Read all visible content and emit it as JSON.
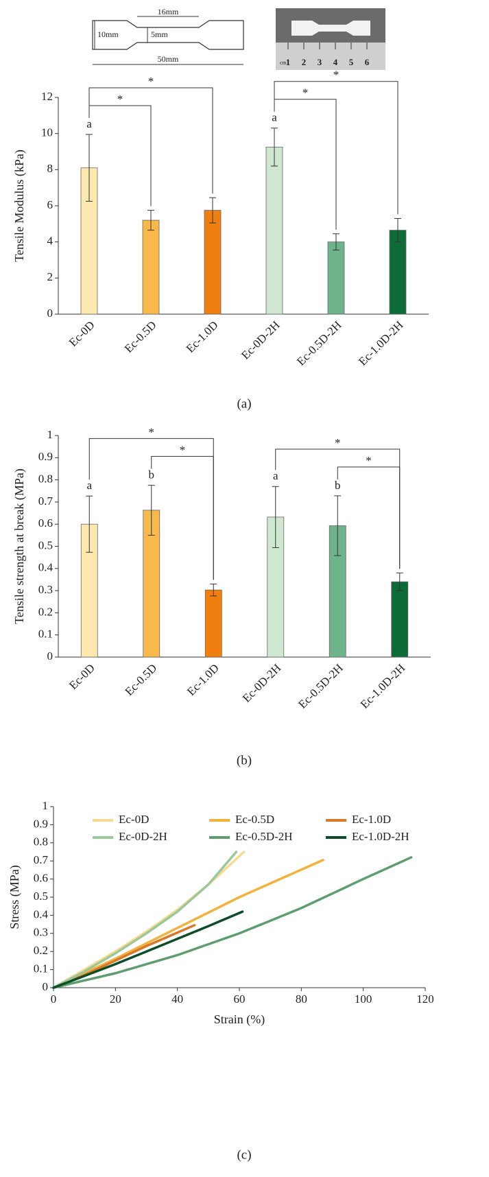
{
  "specimen": {
    "dimensions": [
      "16mm",
      "5mm",
      "10mm",
      "50mm"
    ],
    "ruler": {
      "unit": "cm",
      "numbers": [
        1,
        2,
        3,
        4,
        5,
        6
      ]
    }
  },
  "chart_data": [
    {
      "type": "bar",
      "caption": "(a)",
      "y_label": "Tensile Modulus (kPa)",
      "categories": [
        "Ec-0D",
        "Ec-0.5D",
        "Ec-1.0D",
        "Ec-0D-2H",
        "Ec-0.5D-2H",
        "Ec-1.0D-2H"
      ],
      "values": [
        8.1,
        5.2,
        5.75,
        9.25,
        4.0,
        4.65
      ],
      "errors": [
        1.85,
        0.55,
        0.7,
        1.05,
        0.45,
        0.65
      ],
      "colors": [
        "#fde9ad",
        "#f9b94a",
        "#f07f10",
        "#cfe6d0",
        "#6db48a",
        "#0d6b38"
      ],
      "letters": [
        "a",
        null,
        null,
        "a",
        null,
        null
      ],
      "brackets": [
        {
          "from": "Ec-0D",
          "to": "Ec-0.5D",
          "label": "*"
        },
        {
          "from": "Ec-0D",
          "to": "Ec-1.0D",
          "label": "*"
        },
        {
          "from": "Ec-0D-2H",
          "to": "Ec-0.5D-2H",
          "label": "*"
        },
        {
          "from": "Ec-0D-2H",
          "to": "Ec-1.0D-2H",
          "label": "*"
        }
      ],
      "ylim": [
        0,
        12
      ],
      "yticks": [
        0,
        2,
        4,
        6,
        8,
        10,
        12
      ]
    },
    {
      "type": "bar",
      "caption": "(b)",
      "y_label": "Tensile strength at break (MPa)",
      "categories": [
        "Ec-0D",
        "Ec-0.5D",
        "Ec-1.0D",
        "Ec-0D-2H",
        "Ec-0.5D-2H",
        "Ec-1.0D-2H"
      ],
      "values": [
        0.6,
        0.663,
        0.303,
        0.632,
        0.593,
        0.34
      ],
      "errors": [
        0.127,
        0.113,
        0.027,
        0.138,
        0.135,
        0.04
      ],
      "colors": [
        "#fde9ad",
        "#f9b94a",
        "#f07f10",
        "#cfe6d0",
        "#6db48a",
        "#0d6b38"
      ],
      "letters": [
        "a",
        "b",
        null,
        "a",
        "b",
        null
      ],
      "brackets": [
        {
          "from": "Ec-0.5D",
          "to": "Ec-1.0D",
          "label": "*"
        },
        {
          "from": "Ec-0D",
          "to": "Ec-1.0D",
          "label": "*"
        },
        {
          "from": "Ec-0.5D-2H",
          "to": "Ec-1.0D-2H",
          "label": "*"
        },
        {
          "from": "Ec-0D-2H",
          "to": "Ec-1.0D-2H",
          "label": "*"
        }
      ],
      "ylim": [
        0,
        1
      ],
      "yticks": [
        0,
        0.1,
        0.2,
        0.3,
        0.4,
        0.5,
        0.6,
        0.7,
        0.8,
        0.9,
        1
      ]
    },
    {
      "type": "line",
      "caption": "(c)",
      "x_label": "Strain (%)",
      "y_label": "Stress (MPa)",
      "legend": "top",
      "series": [
        {
          "name": "Ec-0D",
          "color": "#f6da8e",
          "x": [
            0,
            10,
            20,
            30,
            40,
            50,
            61.5
          ],
          "values": [
            0,
            0.1,
            0.2,
            0.31,
            0.43,
            0.57,
            0.75
          ]
        },
        {
          "name": "Ec-0.5D",
          "color": "#f2b33d",
          "x": [
            0,
            20,
            40,
            60,
            87
          ],
          "values": [
            0,
            0.16,
            0.33,
            0.5,
            0.705
          ]
        },
        {
          "name": "Ec-1.0D",
          "color": "#d9782b",
          "x": [
            0,
            10,
            20,
            30,
            45.5
          ],
          "values": [
            0,
            0.07,
            0.15,
            0.23,
            0.345
          ]
        },
        {
          "name": "Ec-0D-2H",
          "color": "#9bc89b",
          "x": [
            0,
            10,
            20,
            30,
            40,
            50,
            59
          ],
          "values": [
            0,
            0.09,
            0.19,
            0.3,
            0.42,
            0.57,
            0.75
          ]
        },
        {
          "name": "Ec-0.5D-2H",
          "color": "#5e9e6e",
          "x": [
            0,
            20,
            40,
            60,
            80,
            100,
            115.5
          ],
          "values": [
            0,
            0.08,
            0.18,
            0.3,
            0.44,
            0.6,
            0.72
          ]
        },
        {
          "name": "Ec-1.0D-2H",
          "color": "#0d4d27",
          "x": [
            0,
            10,
            20,
            30,
            40,
            50,
            61
          ],
          "values": [
            0,
            0.065,
            0.13,
            0.2,
            0.27,
            0.34,
            0.42
          ]
        }
      ],
      "xlim": [
        0,
        120
      ],
      "xticks": [
        0,
        20,
        40,
        60,
        80,
        100,
        120
      ],
      "ylim": [
        0,
        1
      ],
      "yticks": [
        0,
        0.1,
        0.2,
        0.3,
        0.4,
        0.5,
        0.6,
        0.7,
        0.8,
        0.9,
        1
      ]
    }
  ]
}
